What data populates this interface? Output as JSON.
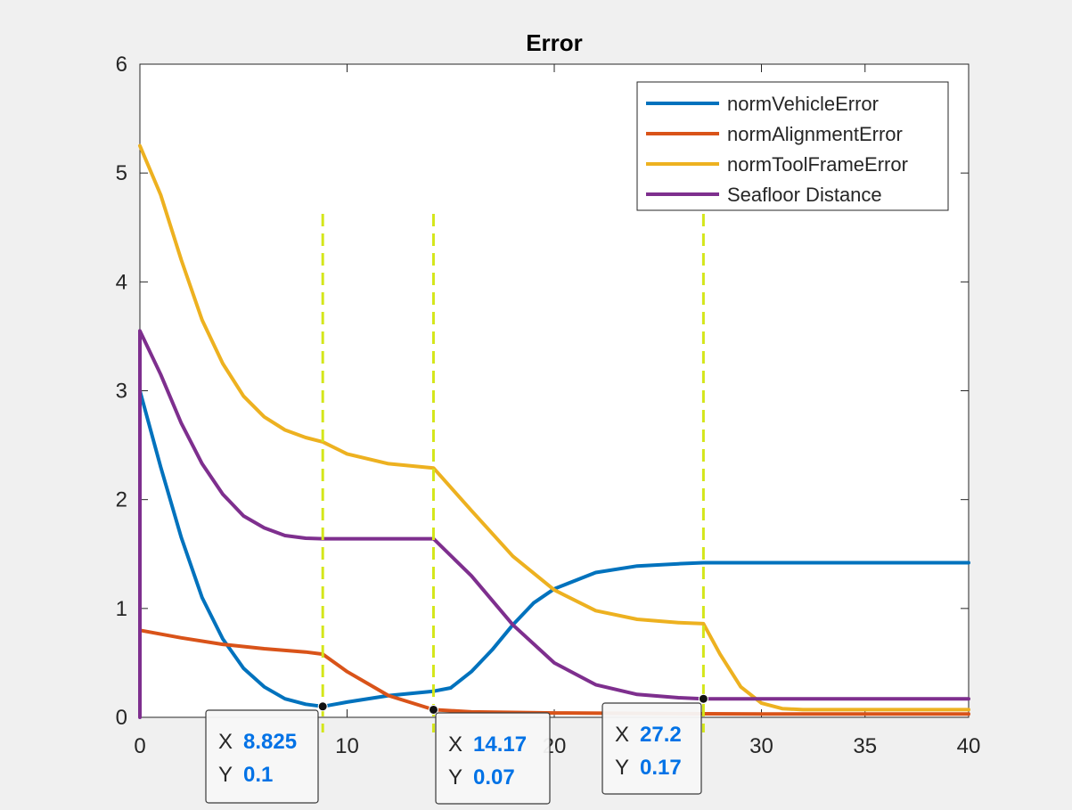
{
  "chart_data": {
    "type": "line",
    "title": "Error",
    "xlim": [
      0,
      40
    ],
    "ylim": [
      0,
      6
    ],
    "x_ticks": [
      0,
      10,
      20,
      30,
      35,
      40
    ],
    "x_tick_labels": [
      "0",
      "10",
      "20",
      "30",
      "35",
      "40"
    ],
    "y_ticks": [
      0,
      1,
      2,
      3,
      4,
      5,
      6
    ],
    "y_tick_labels": [
      "0",
      "1",
      "2",
      "3",
      "4",
      "5",
      "6"
    ],
    "grid": false,
    "legend_position": "top-right",
    "series": [
      {
        "name": "normVehicleError",
        "color": "#0072bd",
        "x": [
          0,
          1,
          2,
          3,
          4,
          5,
          6,
          7,
          8,
          8.825,
          10,
          12,
          14.17,
          15,
          16,
          17,
          18,
          19,
          20,
          22,
          24,
          26,
          27.2,
          30,
          35,
          40
        ],
        "y": [
          3.0,
          2.3,
          1.65,
          1.1,
          0.72,
          0.45,
          0.28,
          0.17,
          0.12,
          0.1,
          0.14,
          0.2,
          0.24,
          0.27,
          0.42,
          0.62,
          0.85,
          1.05,
          1.18,
          1.33,
          1.39,
          1.41,
          1.42,
          1.42,
          1.42,
          1.42
        ]
      },
      {
        "name": "normAlignmentError",
        "color": "#d95319",
        "x": [
          0,
          2,
          4,
          6,
          8,
          8.825,
          10,
          12,
          14.17,
          16,
          20,
          30,
          40
        ],
        "y": [
          0.8,
          0.73,
          0.67,
          0.63,
          0.6,
          0.58,
          0.42,
          0.2,
          0.07,
          0.05,
          0.04,
          0.03,
          0.03
        ]
      },
      {
        "name": "normToolFrameError",
        "color": "#edb120",
        "x": [
          0,
          1,
          2,
          3,
          4,
          5,
          6,
          7,
          8,
          8.825,
          10,
          12,
          14.17,
          16,
          18,
          20,
          22,
          24,
          26,
          27.2,
          28,
          29,
          30,
          31,
          32,
          35,
          40
        ],
        "y": [
          5.25,
          4.8,
          4.2,
          3.65,
          3.25,
          2.95,
          2.76,
          2.64,
          2.57,
          2.53,
          2.42,
          2.33,
          2.29,
          1.9,
          1.48,
          1.17,
          0.98,
          0.9,
          0.87,
          0.86,
          0.58,
          0.28,
          0.13,
          0.08,
          0.07,
          0.07,
          0.07
        ]
      },
      {
        "name": "Seafloor Distance",
        "color": "#7e2f8e",
        "x": [
          0,
          0,
          1,
          2,
          3,
          4,
          5,
          6,
          7,
          8,
          8.825,
          10,
          12,
          14.17,
          16,
          18,
          20,
          22,
          24,
          26,
          27.2,
          30,
          35,
          40
        ],
        "y": [
          0,
          3.55,
          3.15,
          2.7,
          2.33,
          2.05,
          1.85,
          1.74,
          1.67,
          1.645,
          1.64,
          1.64,
          1.64,
          1.64,
          1.3,
          0.85,
          0.5,
          0.3,
          0.21,
          0.18,
          0.17,
          0.17,
          0.17,
          0.17
        ]
      }
    ],
    "reference_lines": {
      "color": "#d4e61a",
      "x": [
        8.825,
        14.17,
        27.2
      ]
    },
    "data_tips": [
      {
        "x_key": "X",
        "x_value": "8.825",
        "y_key": "Y",
        "y_value": "0.1",
        "x": 8.825,
        "y": 0.1
      },
      {
        "x_key": "X",
        "x_value": "14.17",
        "y_key": "Y",
        "y_value": "0.07",
        "x": 14.17,
        "y": 0.07
      },
      {
        "x_key": "X",
        "x_value": "27.2",
        "y_key": "Y",
        "y_value": "0.17",
        "x": 27.2,
        "y": 0.17
      }
    ]
  }
}
